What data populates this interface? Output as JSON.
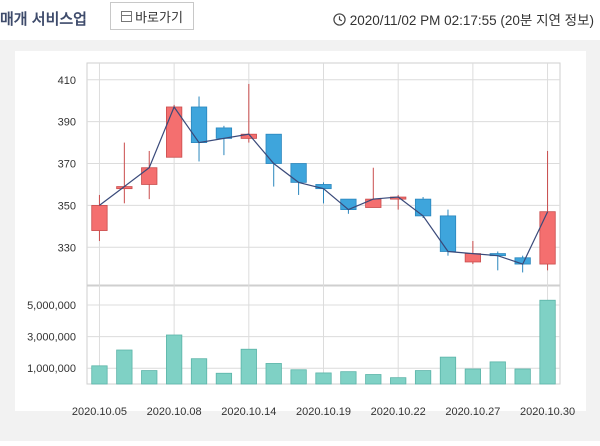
{
  "header": {
    "title": "매개 서비스업",
    "shortcut_label": "바로가기",
    "timestamp": "2020/11/02 PM 02:17:55 (20분 지연 정보)"
  },
  "colors": {
    "up": "#f46f6f",
    "down": "#3ea5dc",
    "volume": "#7fd1c5",
    "line": "#3a4a7a"
  },
  "chart_data": {
    "type": "candlestick",
    "price_axis": {
      "ticks": [
        330,
        350,
        370,
        390,
        410
      ],
      "ylim": [
        312,
        418
      ]
    },
    "volume_axis": {
      "ticks": [
        1000000,
        3000000,
        5000000
      ],
      "tick_labels": [
        "1,000,000",
        "3,000,000",
        "5,000,000"
      ],
      "ylim": [
        0,
        6200000
      ]
    },
    "x_tick_labels": [
      "2020.10.05",
      "2020.10.08",
      "2020.10.14",
      "2020.10.19",
      "2020.10.22",
      "2020.10.27",
      "2020.10.30"
    ],
    "x_tick_indices": [
      0,
      3,
      6,
      9,
      12,
      15,
      18
    ],
    "grid": true,
    "candles": [
      {
        "open": 338,
        "close": 350,
        "high": 355,
        "low": 333
      },
      {
        "open": 358,
        "close": 359,
        "high": 380,
        "low": 351
      },
      {
        "open": 360,
        "close": 368,
        "high": 376,
        "low": 353
      },
      {
        "open": 373,
        "close": 397,
        "high": 398,
        "low": 373
      },
      {
        "open": 397,
        "close": 380,
        "high": 402,
        "low": 371
      },
      {
        "open": 387,
        "close": 382,
        "high": 388,
        "low": 374
      },
      {
        "open": 382,
        "close": 384,
        "high": 408,
        "low": 380
      },
      {
        "open": 384,
        "close": 370,
        "high": 384,
        "low": 359
      },
      {
        "open": 370,
        "close": 361,
        "high": 370,
        "low": 355
      },
      {
        "open": 360,
        "close": 358,
        "high": 361,
        "low": 351
      },
      {
        "open": 353,
        "close": 348,
        "high": 353,
        "low": 346
      },
      {
        "open": 349,
        "close": 353,
        "high": 368,
        "low": 349
      },
      {
        "open": 353,
        "close": 354,
        "high": 355,
        "low": 348
      },
      {
        "open": 353,
        "close": 345,
        "high": 354,
        "low": 344
      },
      {
        "open": 345,
        "close": 328,
        "high": 348,
        "low": 326
      },
      {
        "open": 323,
        "close": 327,
        "high": 333,
        "low": 322
      },
      {
        "open": 327,
        "close": 326,
        "high": 328,
        "low": 319
      },
      {
        "open": 325,
        "close": 322,
        "high": 326,
        "low": 318
      },
      {
        "open": 322,
        "close": 347,
        "high": 376,
        "low": 319
      }
    ],
    "close_line": [
      350,
      359,
      368,
      397,
      380,
      382,
      384,
      370,
      361,
      358,
      348,
      353,
      354,
      345,
      328,
      327,
      326,
      322,
      347
    ],
    "volumes": [
      1150000,
      2150000,
      850000,
      3100000,
      1600000,
      680000,
      2200000,
      1300000,
      900000,
      700000,
      780000,
      600000,
      400000,
      850000,
      1700000,
      950000,
      1400000,
      950000,
      5300000
    ]
  }
}
